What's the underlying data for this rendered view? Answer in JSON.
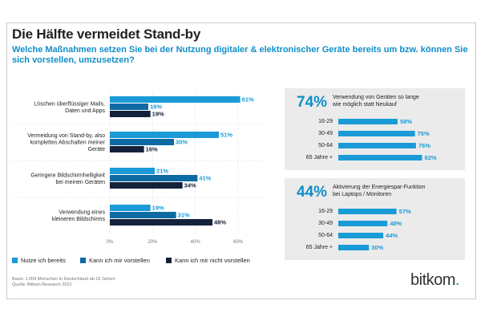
{
  "title": "Die Hälfte vermeidet Stand-by",
  "subtitle": "Welche Maßnahmen setzen Sie bei der Nutzung digitaler & elektronischer Geräte bereits um bzw. können Sie sich vorstellen, umzusetzen?",
  "colors": {
    "bereits": "#1a9bd7",
    "vorstellen": "#0d6aa3",
    "nicht": "#14213a",
    "accent": "#0f8fc9",
    "panel": "#ebebeb"
  },
  "legend": [
    "Nutze ich bereits",
    "Kann ich mir vorstellen",
    "Kann ich mir nicht vorstellen"
  ],
  "footnote": [
    "Basis: 1.009 Menschen in Deutschland ab 16 Jahren",
    "Quelle: Bitkom Research 2021"
  ],
  "logo": {
    "text": "bitkom",
    "icon": "bitkom-logo"
  },
  "chart_data": [
    {
      "type": "bar",
      "orientation": "horizontal",
      "categories": [
        [
          "Löschen überflüssiger Mails,",
          "Daten und Apps"
        ],
        [
          "Vermeidung von Stand-by, also",
          "komplettes Abschalten meiner",
          "Geräte"
        ],
        [
          "Geringere Bildschirmhelligkeit",
          "bei meinen Geräten"
        ],
        [
          "Verwendung eines",
          "kleineren Bildschirms"
        ]
      ],
      "series": [
        {
          "name": "Nutze ich bereits",
          "values": [
            61,
            51,
            21,
            19
          ]
        },
        {
          "name": "Kann ich mir vorstellen",
          "values": [
            18,
            30,
            41,
            31
          ]
        },
        {
          "name": "Kann ich mir nicht vorstellen",
          "values": [
            19,
            16,
            34,
            48
          ]
        }
      ],
      "unit": "%",
      "xlim": [
        0,
        60
      ],
      "xticks": [
        "0%",
        "20%",
        "40%",
        "60%"
      ]
    },
    {
      "type": "bar",
      "orientation": "horizontal",
      "headline": "74%",
      "description": [
        "Verwendung von Geräten so lange",
        "wie möglich statt Neukauf"
      ],
      "categories": [
        "16-29",
        "30-49",
        "50-64",
        "65 Jahre +"
      ],
      "values": [
        58,
        75,
        76,
        82
      ],
      "unit": "%",
      "xlim": [
        0,
        100
      ]
    },
    {
      "type": "bar",
      "orientation": "horizontal",
      "headline": "44%",
      "description": [
        "Aktivierung der Energiespar-Funktion",
        "bei Laptops / Monitoren"
      ],
      "categories": [
        "16-29",
        "30-49",
        "50-64",
        "65 Jahre +"
      ],
      "values": [
        57,
        48,
        44,
        30
      ],
      "unit": "%",
      "xlim": [
        0,
        100
      ]
    }
  ]
}
